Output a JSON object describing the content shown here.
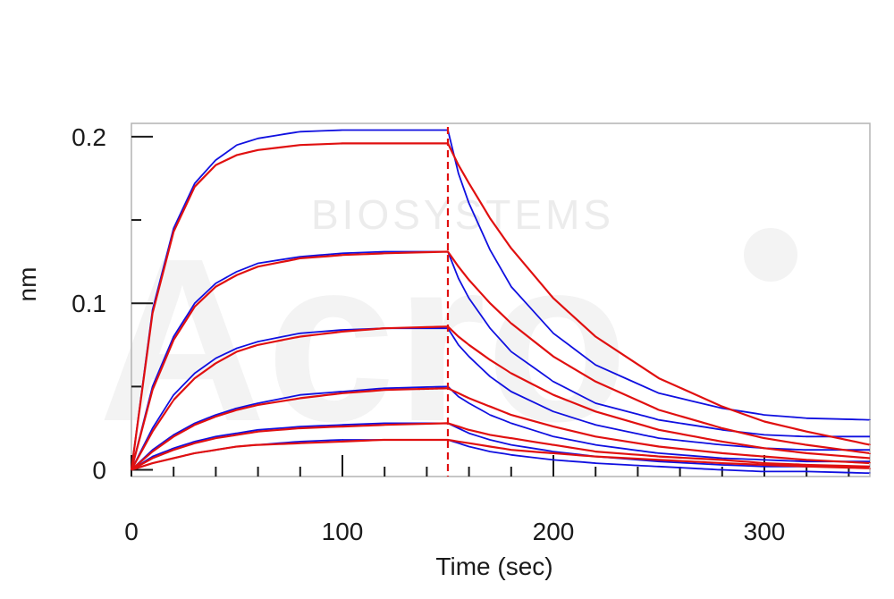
{
  "chart_data": {
    "type": "line",
    "title": "",
    "xlabel": "Time (sec)",
    "ylabel": "nm",
    "xlim": [
      0,
      350
    ],
    "ylim": [
      -0.004,
      0.208
    ],
    "x_ticks": [
      0,
      100,
      200,
      300
    ],
    "x_tick_labels": [
      "0",
      "100",
      "200",
      "300"
    ],
    "x_minor_step": 20,
    "y_ticks": [
      0,
      0.1,
      0.2
    ],
    "y_tick_labels": [
      "0",
      "0.1",
      "0.2"
    ],
    "y_minor_step": 0.05,
    "grid": false,
    "association_end_marker": 150,
    "watermark": "BIOSYSTEMS",
    "colors": {
      "measured": "#1010e0",
      "fit": "#e01010",
      "marker": "#e01010",
      "frame": "#b4b4b4",
      "ticks": "#1a1a1a"
    },
    "series": [
      {
        "kind": "measured",
        "x": [
          0,
          10,
          20,
          30,
          40,
          50,
          60,
          80,
          100,
          120,
          150,
          155,
          160,
          170,
          180,
          200,
          220,
          250,
          280,
          300,
          320,
          350
        ],
        "y": [
          0,
          0.096,
          0.145,
          0.172,
          0.186,
          0.195,
          0.199,
          0.203,
          0.204,
          0.204,
          0.204,
          0.178,
          0.16,
          0.132,
          0.11,
          0.082,
          0.063,
          0.046,
          0.037,
          0.033,
          0.031,
          0.03
        ]
      },
      {
        "kind": "measured",
        "x": [
          0,
          10,
          20,
          30,
          40,
          50,
          60,
          80,
          100,
          120,
          150,
          155,
          160,
          170,
          180,
          200,
          220,
          250,
          280,
          300,
          320,
          350
        ],
        "y": [
          0,
          0.05,
          0.08,
          0.1,
          0.112,
          0.119,
          0.124,
          0.128,
          0.13,
          0.131,
          0.131,
          0.115,
          0.103,
          0.085,
          0.071,
          0.053,
          0.04,
          0.03,
          0.024,
          0.021,
          0.02,
          0.02
        ]
      },
      {
        "kind": "measured",
        "x": [
          0,
          10,
          20,
          30,
          40,
          50,
          60,
          80,
          100,
          120,
          150,
          155,
          160,
          170,
          180,
          200,
          220,
          250,
          280,
          300,
          320,
          350
        ],
        "y": [
          0,
          0.025,
          0.045,
          0.058,
          0.067,
          0.073,
          0.077,
          0.082,
          0.084,
          0.085,
          0.085,
          0.075,
          0.068,
          0.056,
          0.047,
          0.035,
          0.027,
          0.019,
          0.015,
          0.013,
          0.012,
          0.012
        ]
      },
      {
        "kind": "measured",
        "x": [
          0,
          10,
          20,
          30,
          40,
          50,
          60,
          80,
          100,
          120,
          150,
          155,
          160,
          170,
          180,
          200,
          220,
          250,
          280,
          300,
          320,
          350
        ],
        "y": [
          0,
          0.012,
          0.021,
          0.028,
          0.033,
          0.037,
          0.04,
          0.045,
          0.047,
          0.049,
          0.05,
          0.044,
          0.04,
          0.033,
          0.028,
          0.02,
          0.015,
          0.01,
          0.007,
          0.006,
          0.005,
          0.005
        ]
      },
      {
        "kind": "measured",
        "x": [
          0,
          10,
          20,
          30,
          40,
          50,
          60,
          80,
          100,
          120,
          150,
          155,
          160,
          170,
          180,
          200,
          220,
          250,
          280,
          300,
          320,
          350
        ],
        "y": [
          0,
          0.008,
          0.013,
          0.017,
          0.02,
          0.022,
          0.024,
          0.026,
          0.027,
          0.028,
          0.028,
          0.025,
          0.022,
          0.018,
          0.015,
          0.011,
          0.008,
          0.005,
          0.003,
          0.002,
          0.002,
          0.002
        ]
      },
      {
        "kind": "measured",
        "x": [
          0,
          10,
          20,
          30,
          40,
          50,
          60,
          80,
          100,
          120,
          150,
          155,
          160,
          170,
          180,
          200,
          220,
          250,
          280,
          300,
          320,
          350
        ],
        "y": [
          0,
          0.004,
          0.007,
          0.01,
          0.012,
          0.014,
          0.015,
          0.017,
          0.018,
          0.018,
          0.018,
          0.016,
          0.014,
          0.011,
          0.009,
          0.006,
          0.004,
          0.002,
          0.0,
          -0.001,
          -0.001,
          -0.002
        ]
      },
      {
        "kind": "fit",
        "x": [
          0,
          10,
          20,
          30,
          40,
          50,
          60,
          80,
          100,
          120,
          150,
          155,
          160,
          170,
          180,
          200,
          220,
          250,
          280,
          300,
          320,
          350
        ],
        "y": [
          0,
          0.094,
          0.143,
          0.17,
          0.183,
          0.189,
          0.192,
          0.195,
          0.196,
          0.196,
          0.196,
          0.183,
          0.172,
          0.151,
          0.133,
          0.103,
          0.08,
          0.055,
          0.038,
          0.029,
          0.023,
          0.015
        ]
      },
      {
        "kind": "fit",
        "x": [
          0,
          10,
          20,
          30,
          40,
          50,
          60,
          80,
          100,
          120,
          150,
          155,
          160,
          170,
          180,
          200,
          220,
          250,
          280,
          300,
          320,
          350
        ],
        "y": [
          0,
          0.048,
          0.078,
          0.098,
          0.11,
          0.117,
          0.122,
          0.127,
          0.129,
          0.13,
          0.131,
          0.122,
          0.114,
          0.1,
          0.088,
          0.068,
          0.053,
          0.036,
          0.025,
          0.019,
          0.015,
          0.01
        ]
      },
      {
        "kind": "fit",
        "x": [
          0,
          10,
          20,
          30,
          40,
          50,
          60,
          80,
          100,
          120,
          150,
          155,
          160,
          170,
          180,
          200,
          220,
          250,
          280,
          300,
          320,
          350
        ],
        "y": [
          0,
          0.023,
          0.042,
          0.055,
          0.064,
          0.071,
          0.075,
          0.08,
          0.083,
          0.085,
          0.086,
          0.08,
          0.075,
          0.066,
          0.058,
          0.045,
          0.035,
          0.024,
          0.017,
          0.013,
          0.01,
          0.007
        ]
      },
      {
        "kind": "fit",
        "x": [
          0,
          10,
          20,
          30,
          40,
          50,
          60,
          80,
          100,
          120,
          150,
          155,
          160,
          170,
          180,
          200,
          220,
          250,
          280,
          300,
          320,
          350
        ],
        "y": [
          0,
          0.011,
          0.02,
          0.027,
          0.032,
          0.036,
          0.039,
          0.043,
          0.046,
          0.048,
          0.049,
          0.046,
          0.043,
          0.038,
          0.033,
          0.026,
          0.02,
          0.014,
          0.01,
          0.008,
          0.006,
          0.004
        ]
      },
      {
        "kind": "fit",
        "x": [
          0,
          10,
          20,
          30,
          40,
          50,
          60,
          80,
          100,
          120,
          150,
          155,
          160,
          170,
          180,
          200,
          220,
          250,
          280,
          300,
          320,
          350
        ],
        "y": [
          0,
          0.007,
          0.012,
          0.016,
          0.019,
          0.021,
          0.023,
          0.025,
          0.026,
          0.027,
          0.028,
          0.026,
          0.024,
          0.021,
          0.019,
          0.015,
          0.011,
          0.008,
          0.006,
          0.004,
          0.003,
          0.002
        ]
      },
      {
        "kind": "fit",
        "x": [
          0,
          10,
          20,
          30,
          40,
          50,
          60,
          80,
          100,
          120,
          150,
          155,
          160,
          170,
          180,
          200,
          220,
          250,
          280,
          300,
          320,
          350
        ],
        "y": [
          0,
          0.004,
          0.007,
          0.01,
          0.012,
          0.014,
          0.015,
          0.016,
          0.017,
          0.018,
          0.018,
          0.017,
          0.016,
          0.014,
          0.012,
          0.01,
          0.008,
          0.006,
          0.004,
          0.003,
          0.002,
          0.001
        ]
      }
    ]
  }
}
